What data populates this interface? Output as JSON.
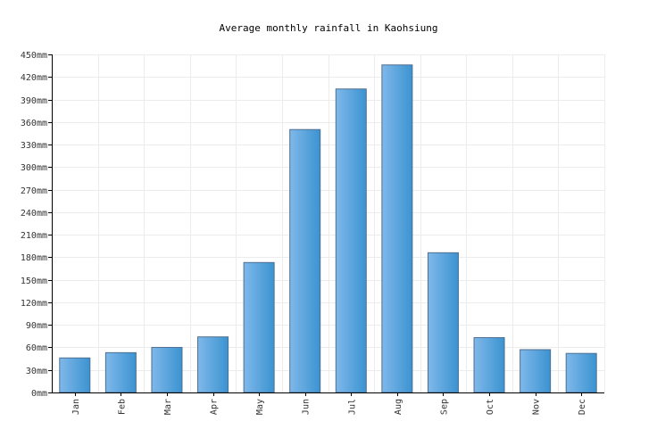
{
  "chart_data": {
    "type": "bar",
    "title": "Average monthly rainfall in Kaohsiung",
    "categories": [
      "Jan",
      "Feb",
      "Mar",
      "Apr",
      "May",
      "Jun",
      "Jul",
      "Aug",
      "Sep",
      "Oct",
      "Nov",
      "Dec"
    ],
    "values": [
      46,
      53,
      60,
      74,
      173,
      350,
      404,
      436,
      186,
      73,
      57,
      52
    ],
    "y_ticks": [
      "0mm",
      "30mm",
      "60mm",
      "90mm",
      "120mm",
      "150mm",
      "180mm",
      "210mm",
      "240mm",
      "270mm",
      "300mm",
      "330mm",
      "360mm",
      "390mm",
      "420mm",
      "450mm"
    ],
    "ylim": [
      0,
      450
    ],
    "grid": true,
    "legend": "none",
    "colors": {
      "bar_left": "#7fb8ea",
      "bar_right": "#3b93d1",
      "bar_edge": "#4f6f8f",
      "grid": "#ececec",
      "axis": "#000000"
    }
  }
}
